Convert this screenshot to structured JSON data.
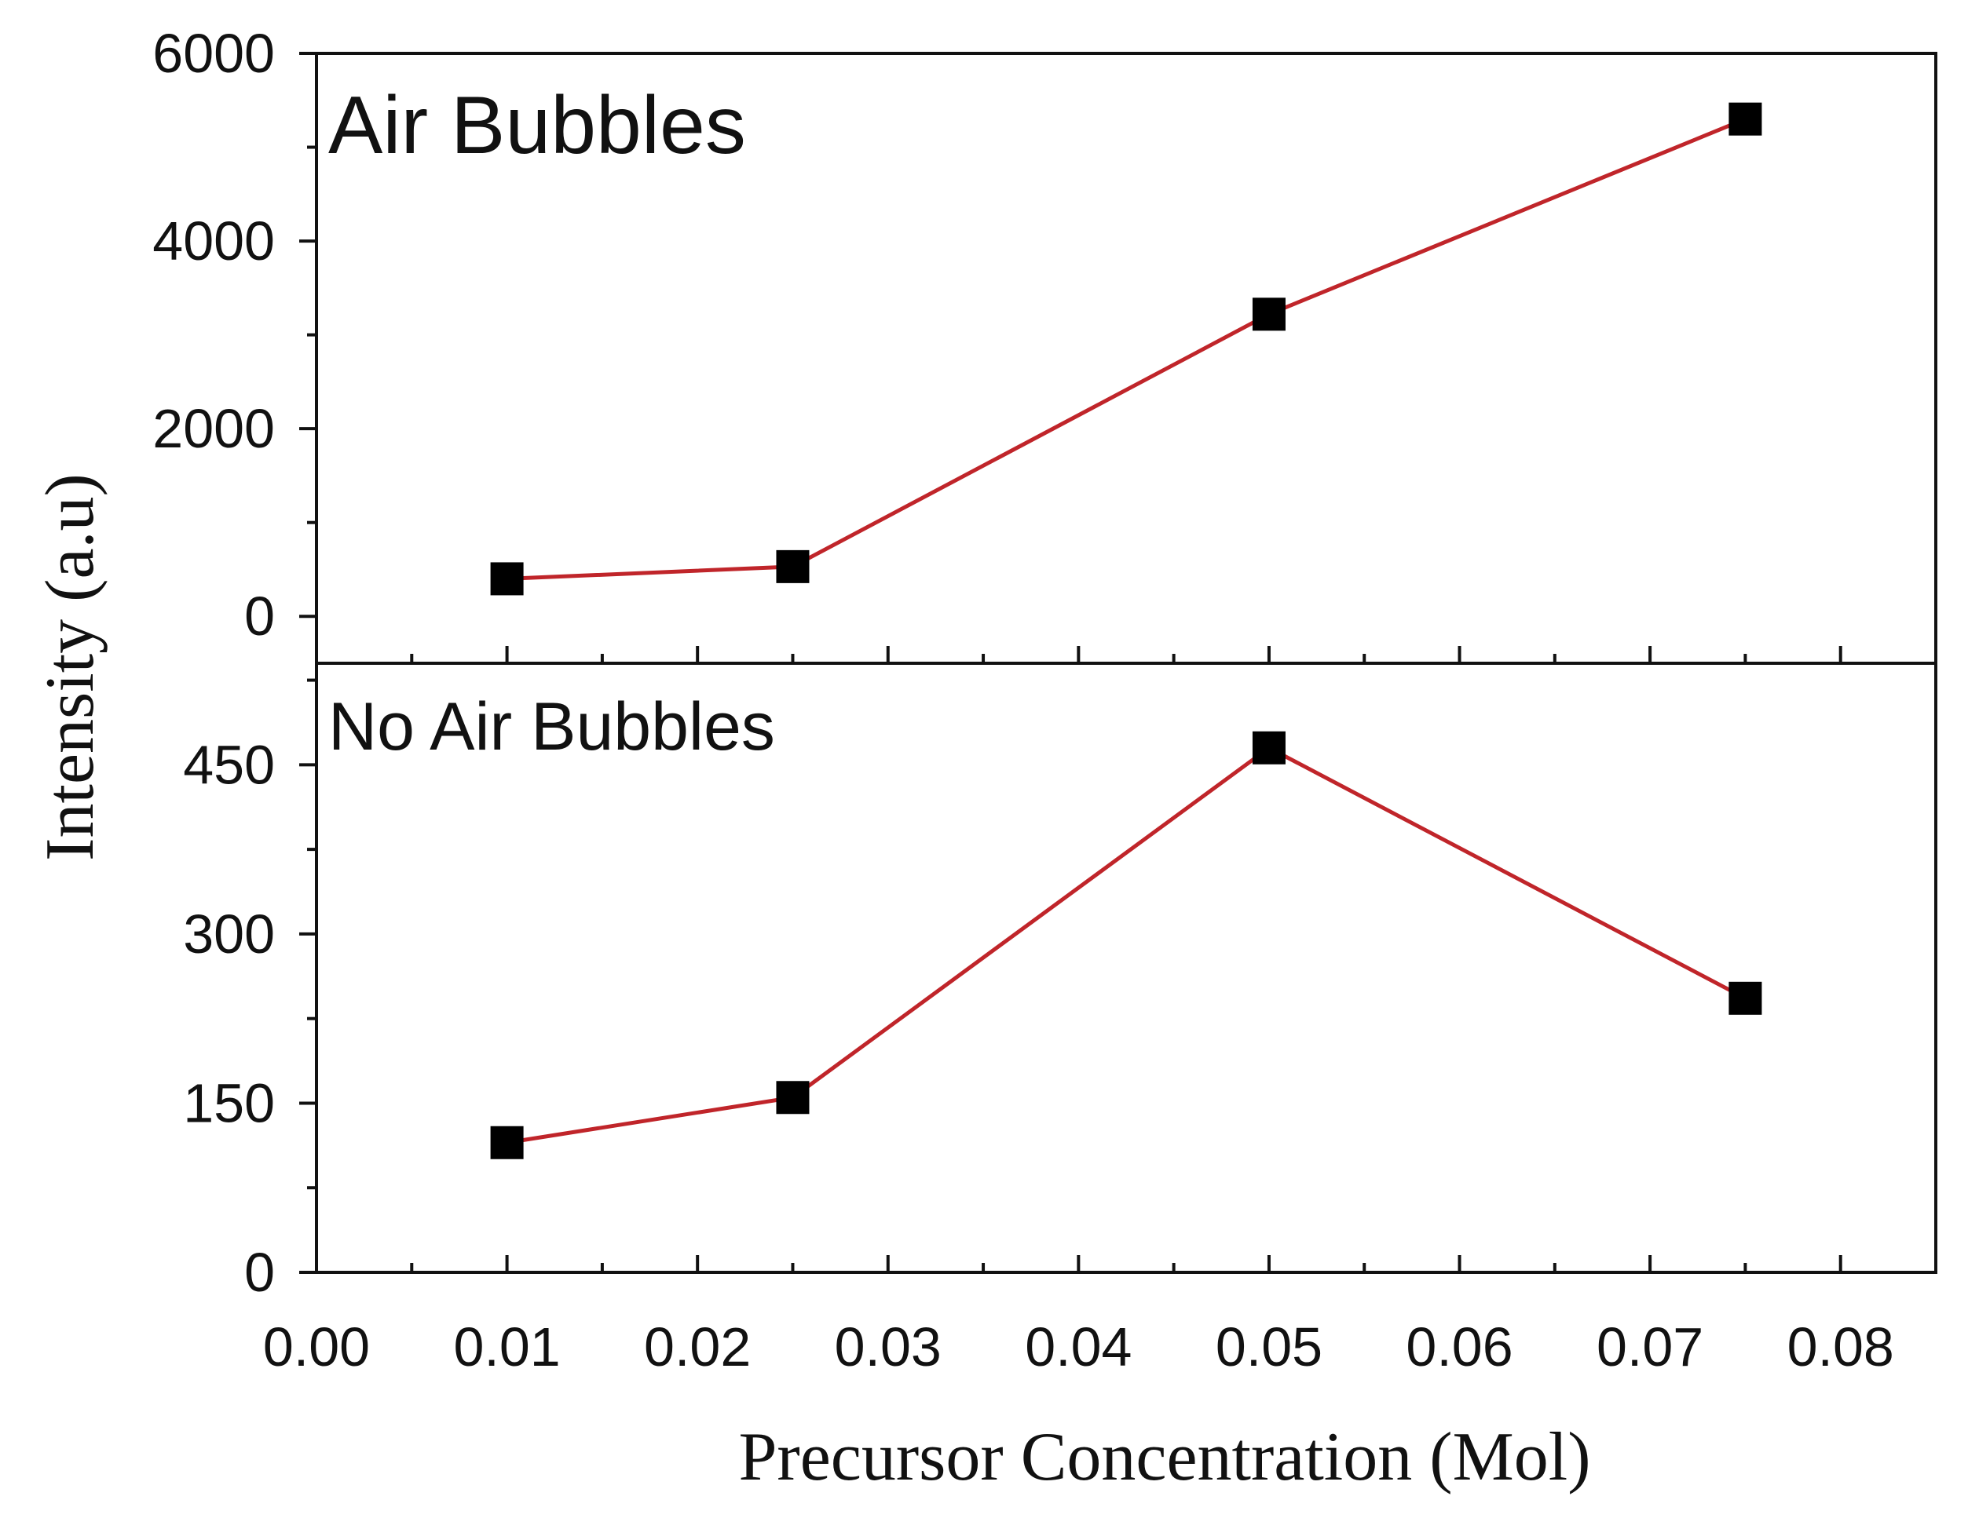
{
  "chart_data": {
    "type": "line",
    "xlabel": "Precursor Concentration (Mol)",
    "ylabel": "Intensity (a.u)",
    "x_ticks": [
      "0.00",
      "0.01",
      "0.02",
      "0.03",
      "0.04",
      "0.05",
      "0.06",
      "0.07",
      "0.08"
    ],
    "xlim": [
      0.0,
      0.085
    ],
    "series_color": "#c0252a",
    "marker_color": "#000000",
    "panels": [
      {
        "title": "Air Bubbles",
        "ylim": [
          -500,
          6000
        ],
        "y_ticks": [
          "0",
          "2000",
          "4000",
          "6000"
        ],
        "x": [
          0.01,
          0.025,
          0.05,
          0.075
        ],
        "y": [
          400,
          530,
          3220,
          5300
        ]
      },
      {
        "title": "No Air Bubbles",
        "ylim": [
          0,
          540
        ],
        "y_ticks": [
          "0",
          "150",
          "300",
          "450"
        ],
        "x": [
          0.01,
          0.025,
          0.05,
          0.075
        ],
        "y": [
          115,
          155,
          465,
          243
        ]
      }
    ]
  }
}
